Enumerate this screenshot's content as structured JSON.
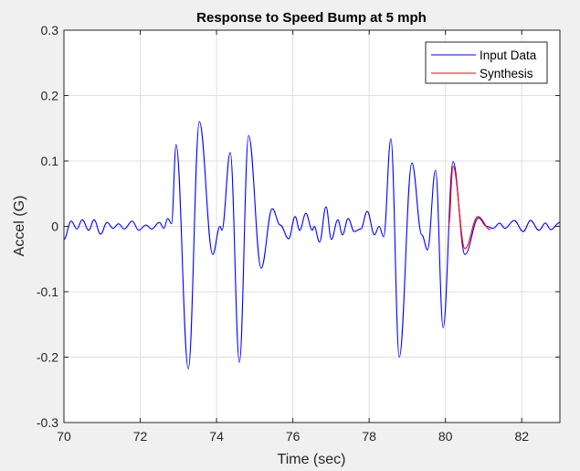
{
  "chart_data": {
    "type": "line",
    "title": "Response to Speed Bump at 5 mph",
    "xlabel": "Time (sec)",
    "ylabel": "Accel (G)",
    "xlim": [
      70,
      83
    ],
    "ylim": [
      -0.3,
      0.3
    ],
    "xticks": [
      70,
      72,
      74,
      76,
      78,
      80,
      82
    ],
    "xtick_labels": [
      "70",
      "72",
      "74",
      "76",
      "78",
      "80",
      "82"
    ],
    "yticks": [
      -0.3,
      -0.2,
      -0.1,
      0,
      0.1,
      0.2,
      0.3
    ],
    "ytick_labels": [
      "-0.3",
      "-0.2",
      "-0.1",
      "0",
      "0.1",
      "0.2",
      "0.3"
    ],
    "grid": true,
    "legend_position": "top-right",
    "series": [
      {
        "name": "Input Data",
        "color": "#0000ff",
        "x": [
          70.0,
          70.19,
          70.34,
          70.48,
          70.65,
          70.79,
          70.96,
          71.13,
          71.29,
          71.43,
          71.58,
          71.79,
          71.96,
          72.15,
          72.3,
          72.5,
          72.62,
          72.72,
          72.82,
          72.94,
          73.26,
          73.55,
          73.9,
          74.09,
          74.14,
          74.36,
          74.6,
          74.84,
          75.17,
          75.46,
          75.67,
          75.89,
          76.06,
          76.18,
          76.34,
          76.51,
          76.56,
          76.7,
          76.87,
          77.01,
          77.18,
          77.3,
          77.45,
          77.61,
          77.78,
          77.95,
          78.14,
          78.26,
          78.38,
          78.57,
          78.79,
          79.12,
          79.38,
          79.53,
          79.74,
          79.94,
          80.2,
          80.51,
          80.87,
          81.08,
          81.25,
          81.42,
          81.56,
          81.8,
          82.04,
          82.23,
          82.45,
          82.62,
          82.76,
          83.0
        ],
        "y": [
          -0.02,
          0.008,
          -0.004,
          0.01,
          -0.006,
          0.01,
          -0.012,
          0.006,
          -0.003,
          0.004,
          -0.004,
          0.008,
          -0.006,
          0.002,
          -0.004,
          0.006,
          -0.003,
          0.012,
          0.004,
          0.125,
          -0.218,
          0.16,
          -0.043,
          0.0,
          -0.006,
          0.113,
          -0.208,
          0.139,
          -0.064,
          0.027,
          0.002,
          -0.019,
          0.015,
          -0.006,
          0.02,
          -0.006,
          0.0,
          -0.024,
          0.03,
          -0.02,
          0.01,
          -0.013,
          0.012,
          -0.008,
          -0.004,
          0.023,
          -0.013,
          0.0,
          -0.016,
          0.134,
          -0.2,
          0.097,
          -0.013,
          -0.036,
          0.086,
          -0.155,
          0.099,
          -0.043,
          0.013,
          0.0,
          -0.003,
          0.005,
          -0.003,
          0.009,
          -0.008,
          0.009,
          -0.006,
          0.005,
          -0.005,
          0.006
        ]
      },
      {
        "name": "Synthesis",
        "color": "#ff0000",
        "x": [
          80.08,
          80.2,
          80.51,
          80.85,
          81.18
        ],
        "y": [
          0.0,
          0.092,
          -0.034,
          0.015,
          -0.005
        ]
      }
    ]
  }
}
